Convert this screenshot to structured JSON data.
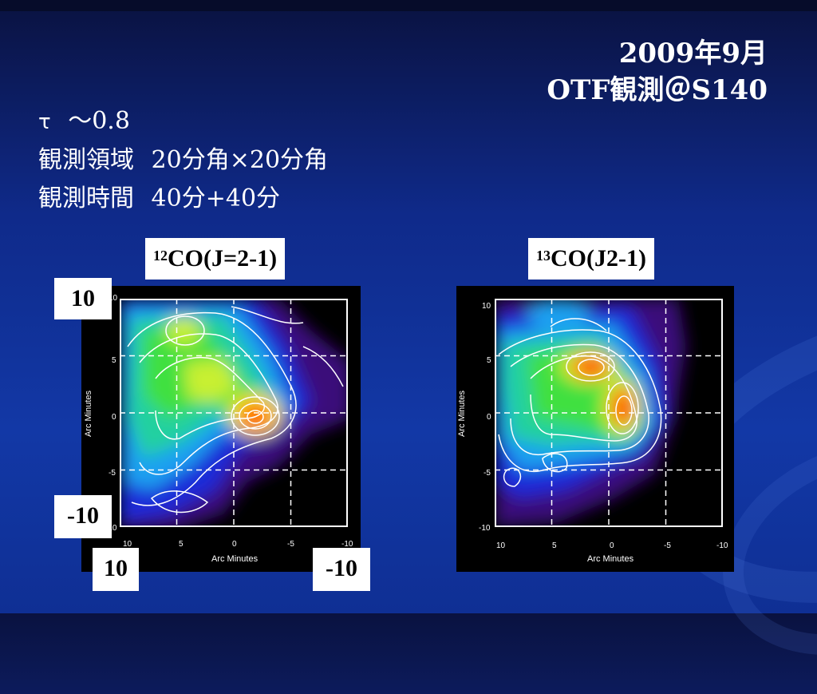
{
  "title": {
    "line1": "2009年9月",
    "line2": "OTF観測＠S140"
  },
  "bullets": [
    {
      "key": "τ",
      "value": "～0.8"
    },
    {
      "key": "観測領域",
      "value": "20分角×20分角"
    },
    {
      "key": "観測時間",
      "value": "40分+40分"
    }
  ],
  "maps": [
    {
      "label_sup": "12",
      "label_main": "CO(J=2-1)",
      "x_axis_label": "Arc Minutes",
      "y_axis_label": "Arc Minutes",
      "x_ticks": [
        "10",
        "5",
        "0",
        "-5",
        "-10"
      ],
      "y_ticks": [
        "10",
        "5",
        "0",
        "-5",
        "-10"
      ]
    },
    {
      "label_sup": "13",
      "label_main": "CO(J2-1)",
      "x_axis_label": "Arc Minutes",
      "y_axis_label": "Arc Minutes",
      "x_ticks": [
        "10",
        "5",
        "0",
        "-5",
        "-10"
      ],
      "y_ticks": [
        "10",
        "5",
        "0",
        "-5",
        "-10"
      ]
    }
  ],
  "overlay_labels": {
    "y_top": "10",
    "y_bottom": "-10",
    "x_left": "10",
    "x_right": "-10"
  },
  "colors": {
    "contour": "#ffffff",
    "grid": "#ffffff",
    "peak": "#ff1a00"
  }
}
